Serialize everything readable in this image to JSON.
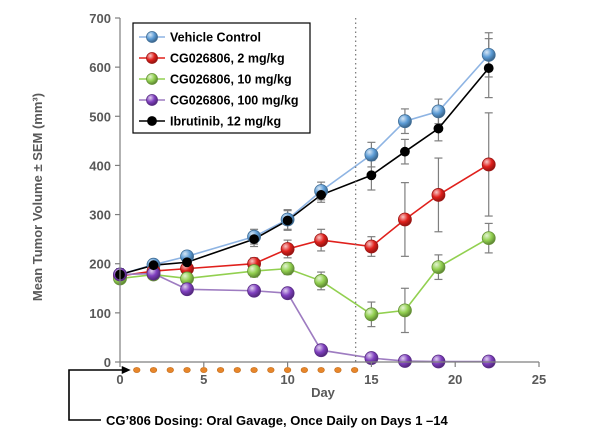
{
  "chart_data": {
    "type": "line",
    "xlabel": "Day",
    "ylabel": "Mean Tumor Volume ± SEM (mm³)",
    "xlim": [
      0,
      25
    ],
    "ylim": [
      0,
      700
    ],
    "x_ticks": [
      0,
      5,
      10,
      15,
      20,
      25
    ],
    "y_ticks": [
      0,
      100,
      200,
      300,
      400,
      500,
      600,
      700
    ],
    "grid": false,
    "legend_position": "top-left",
    "dosing_end_day": 14,
    "dosing_days": [
      1,
      2,
      3,
      4,
      5,
      6,
      7,
      8,
      9,
      10,
      11,
      12,
      13,
      14
    ],
    "annotation": "CG’806 Dosing: Oral Gavage, Once Daily on Days 1 –14",
    "series": [
      {
        "name": "Vehicle Control",
        "color": "#5b9bd5",
        "line_color": "#8eb4e3",
        "x": [
          0,
          2,
          4,
          8,
          10,
          12,
          15,
          17,
          19,
          22
        ],
        "y": [
          178,
          198,
          215,
          255,
          290,
          348,
          422,
          490,
          510,
          625
        ],
        "err": [
          12,
          8,
          10,
          15,
          20,
          18,
          25,
          25,
          25,
          45
        ]
      },
      {
        "name": "CG026806, 2 mg/kg",
        "color": "#e0201c",
        "line_color": "#e0201c",
        "x": [
          0,
          2,
          4,
          8,
          10,
          12,
          15,
          17,
          19,
          22
        ],
        "y": [
          175,
          185,
          190,
          200,
          230,
          248,
          235,
          290,
          340,
          402
        ],
        "err": [
          8,
          8,
          10,
          12,
          18,
          22,
          20,
          75,
          75,
          105
        ]
      },
      {
        "name": "CG026806, 10 mg/kg",
        "color": "#92d050",
        "line_color": "#92d050",
        "x": [
          0,
          2,
          4,
          8,
          10,
          12,
          15,
          17,
          19,
          22
        ],
        "y": [
          170,
          178,
          170,
          185,
          190,
          165,
          97,
          105,
          193,
          252
        ],
        "err": [
          8,
          8,
          8,
          12,
          12,
          18,
          25,
          45,
          25,
          30
        ]
      },
      {
        "name": "CG026806, 100 mg/kg",
        "color": "#7f3fbf",
        "line_color": "#9e7cc1",
        "x": [
          0,
          2,
          4,
          8,
          10,
          12,
          15,
          17,
          19,
          22
        ],
        "y": [
          178,
          180,
          148,
          145,
          140,
          24,
          8,
          2,
          1,
          1
        ],
        "err": [
          5,
          5,
          10,
          8,
          10,
          8,
          3,
          2,
          1,
          1
        ]
      },
      {
        "name": "Ibrutinib, 12 mg/kg",
        "color": "#000000",
        "line_color": "#000000",
        "x": [
          0,
          2,
          4,
          8,
          10,
          12,
          15,
          17,
          19,
          22
        ],
        "y": [
          178,
          197,
          203,
          250,
          288,
          340,
          380,
          428,
          475,
          598
        ],
        "err": [
          8,
          8,
          10,
          15,
          20,
          15,
          30,
          25,
          25,
          60
        ]
      }
    ]
  }
}
